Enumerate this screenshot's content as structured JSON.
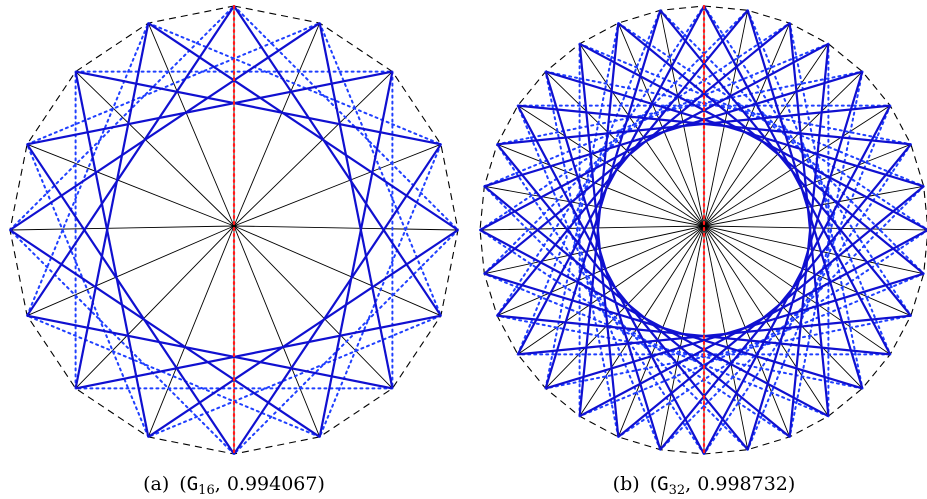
{
  "figures": [
    {
      "id": "a",
      "caption_label": "(a)",
      "caption_open": "(",
      "caption_symbol": "G",
      "caption_subscript": "16",
      "caption_sep": ", ",
      "caption_value": "0.994067",
      "caption_close": ")",
      "polygon_vertices": 16,
      "chord_step": 5
    },
    {
      "id": "b",
      "caption_label": "(b)",
      "caption_open": "(",
      "caption_symbol": "G",
      "caption_subscript": "32",
      "caption_sep": ", ",
      "caption_value": "0.998732",
      "caption_close": ")",
      "polygon_vertices": 32,
      "chord_step": 11
    }
  ],
  "colors": {
    "outline": "#000000",
    "thin_lines": "#000000",
    "solid_lines": "#1010d0",
    "dotted_lines": "#1f3fff",
    "axis": "#ff1a1a"
  }
}
